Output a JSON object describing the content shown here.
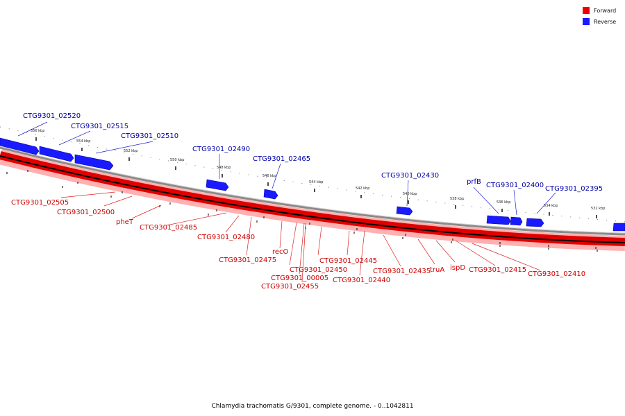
{
  "legend": [
    {
      "label": "Forward",
      "color": "#ee0000"
    },
    {
      "label": "Reverse",
      "color": "#1a1aff"
    }
  ],
  "caption": "Chlamydia trachomatis G/9301, complete genome. - 0..1042811",
  "colors": {
    "forward": "#ee0000",
    "reverse": "#1a1aff",
    "forward_text": "#cc0000",
    "reverse_text": "#0000aa"
  },
  "ticks": [
    "556 kbp",
    "554 kbp",
    "552 kbp",
    "550 kbp",
    "548 kbp",
    "546 kbp",
    "544 kbp",
    "542 kbp",
    "540 kbp",
    "538 kbp",
    "536 kbp",
    "534 kbp",
    "532 kbp"
  ],
  "reverse_genes": [
    "CTG9301_02520",
    "CTG9301_02515",
    "CTG9301_02510",
    "CTG9301_02490",
    "CTG9301_02465",
    "CTG9301_02430",
    "prfB",
    "CTG9301_02400",
    "CTG9301_02395"
  ],
  "forward_genes": [
    "CTG9301_02505",
    "CTG9301_02500",
    "pheT",
    "CTG9301_02485",
    "CTG9301_02480",
    "CTG9301_02475",
    "recO",
    "CTG9301_02450",
    "CTG9301_00005",
    "CTG9301_02455",
    "CTG9301_02445",
    "CTG9301_02440",
    "CTG9301_02435",
    "truA",
    "ispD",
    "CTG9301_02415",
    "CTG9301_02410"
  ]
}
